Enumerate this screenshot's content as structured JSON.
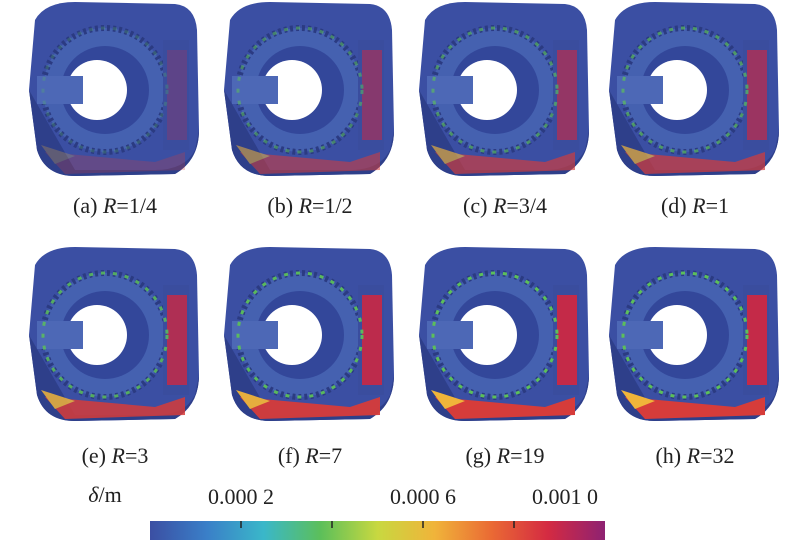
{
  "panels": [
    {
      "letter": "(a)",
      "var": "R",
      "eq": "=1/4"
    },
    {
      "letter": "(b)",
      "var": "R",
      "eq": "=1/2"
    },
    {
      "letter": "(c)",
      "var": "R",
      "eq": "=3/4"
    },
    {
      "letter": "(d)",
      "var": "R",
      "eq": "=1"
    },
    {
      "letter": "(e)",
      "var": "R",
      "eq": "=3"
    },
    {
      "letter": "(f)",
      "var": "R",
      "eq": "=7"
    },
    {
      "letter": "(g)",
      "var": "R",
      "eq": "=19"
    },
    {
      "letter": "(h)",
      "var": "R",
      "eq": "=32"
    }
  ],
  "colorbar": {
    "symbol": "δ",
    "unit": "/m",
    "lim": [
      0,
      0.001
    ],
    "ticks": [
      {
        "value": 0.0002,
        "label": "0.000 2"
      },
      {
        "value": 0.0004,
        "label": null
      },
      {
        "value": 0.0006,
        "label": "0.000 6"
      },
      {
        "value": 0.0008,
        "label": null
      },
      {
        "value": 0.001,
        "label": "0.001 0"
      }
    ],
    "colors": [
      "#3b4fa3",
      "#3a7fc8",
      "#3ab7c9",
      "#5cbf5a",
      "#c8d840",
      "#f0b43a",
      "#ea6a34",
      "#d42a42",
      "#8e2272"
    ]
  }
}
